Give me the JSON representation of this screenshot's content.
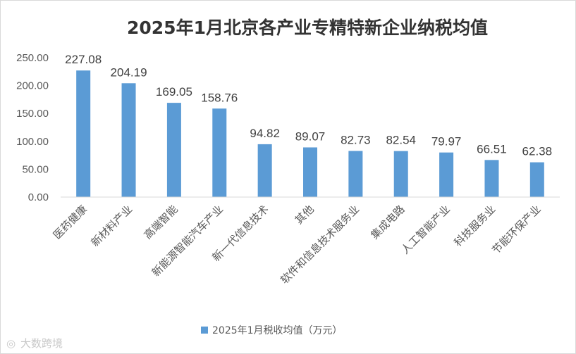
{
  "chart_data": {
    "type": "bar",
    "title": "2025年1月北京各产业专精特新企业纳税均值",
    "categories": [
      "医药健康",
      "新材料产业",
      "高端智能",
      "新能源智能汽车产业",
      "新一代信息技术",
      "其他",
      "软件和信息技术服务业",
      "集成电路",
      "人工智能产业",
      "科技服务业",
      "节能环保产业"
    ],
    "series": [
      {
        "name": "2025年1月税收均值（万元）",
        "values": [
          227.08,
          204.19,
          169.05,
          158.76,
          94.82,
          89.07,
          82.73,
          82.54,
          79.97,
          66.51,
          62.38
        ]
      }
    ],
    "y_ticks": [
      "0.00",
      "50.00",
      "100.00",
      "150.00",
      "200.00",
      "250.00"
    ],
    "ylim": [
      0,
      250
    ],
    "xlabel": "",
    "ylabel": "",
    "grid": false,
    "legend_position": "bottom",
    "bar_color": "#5b9bd5",
    "watermark": "大数跨境"
  }
}
